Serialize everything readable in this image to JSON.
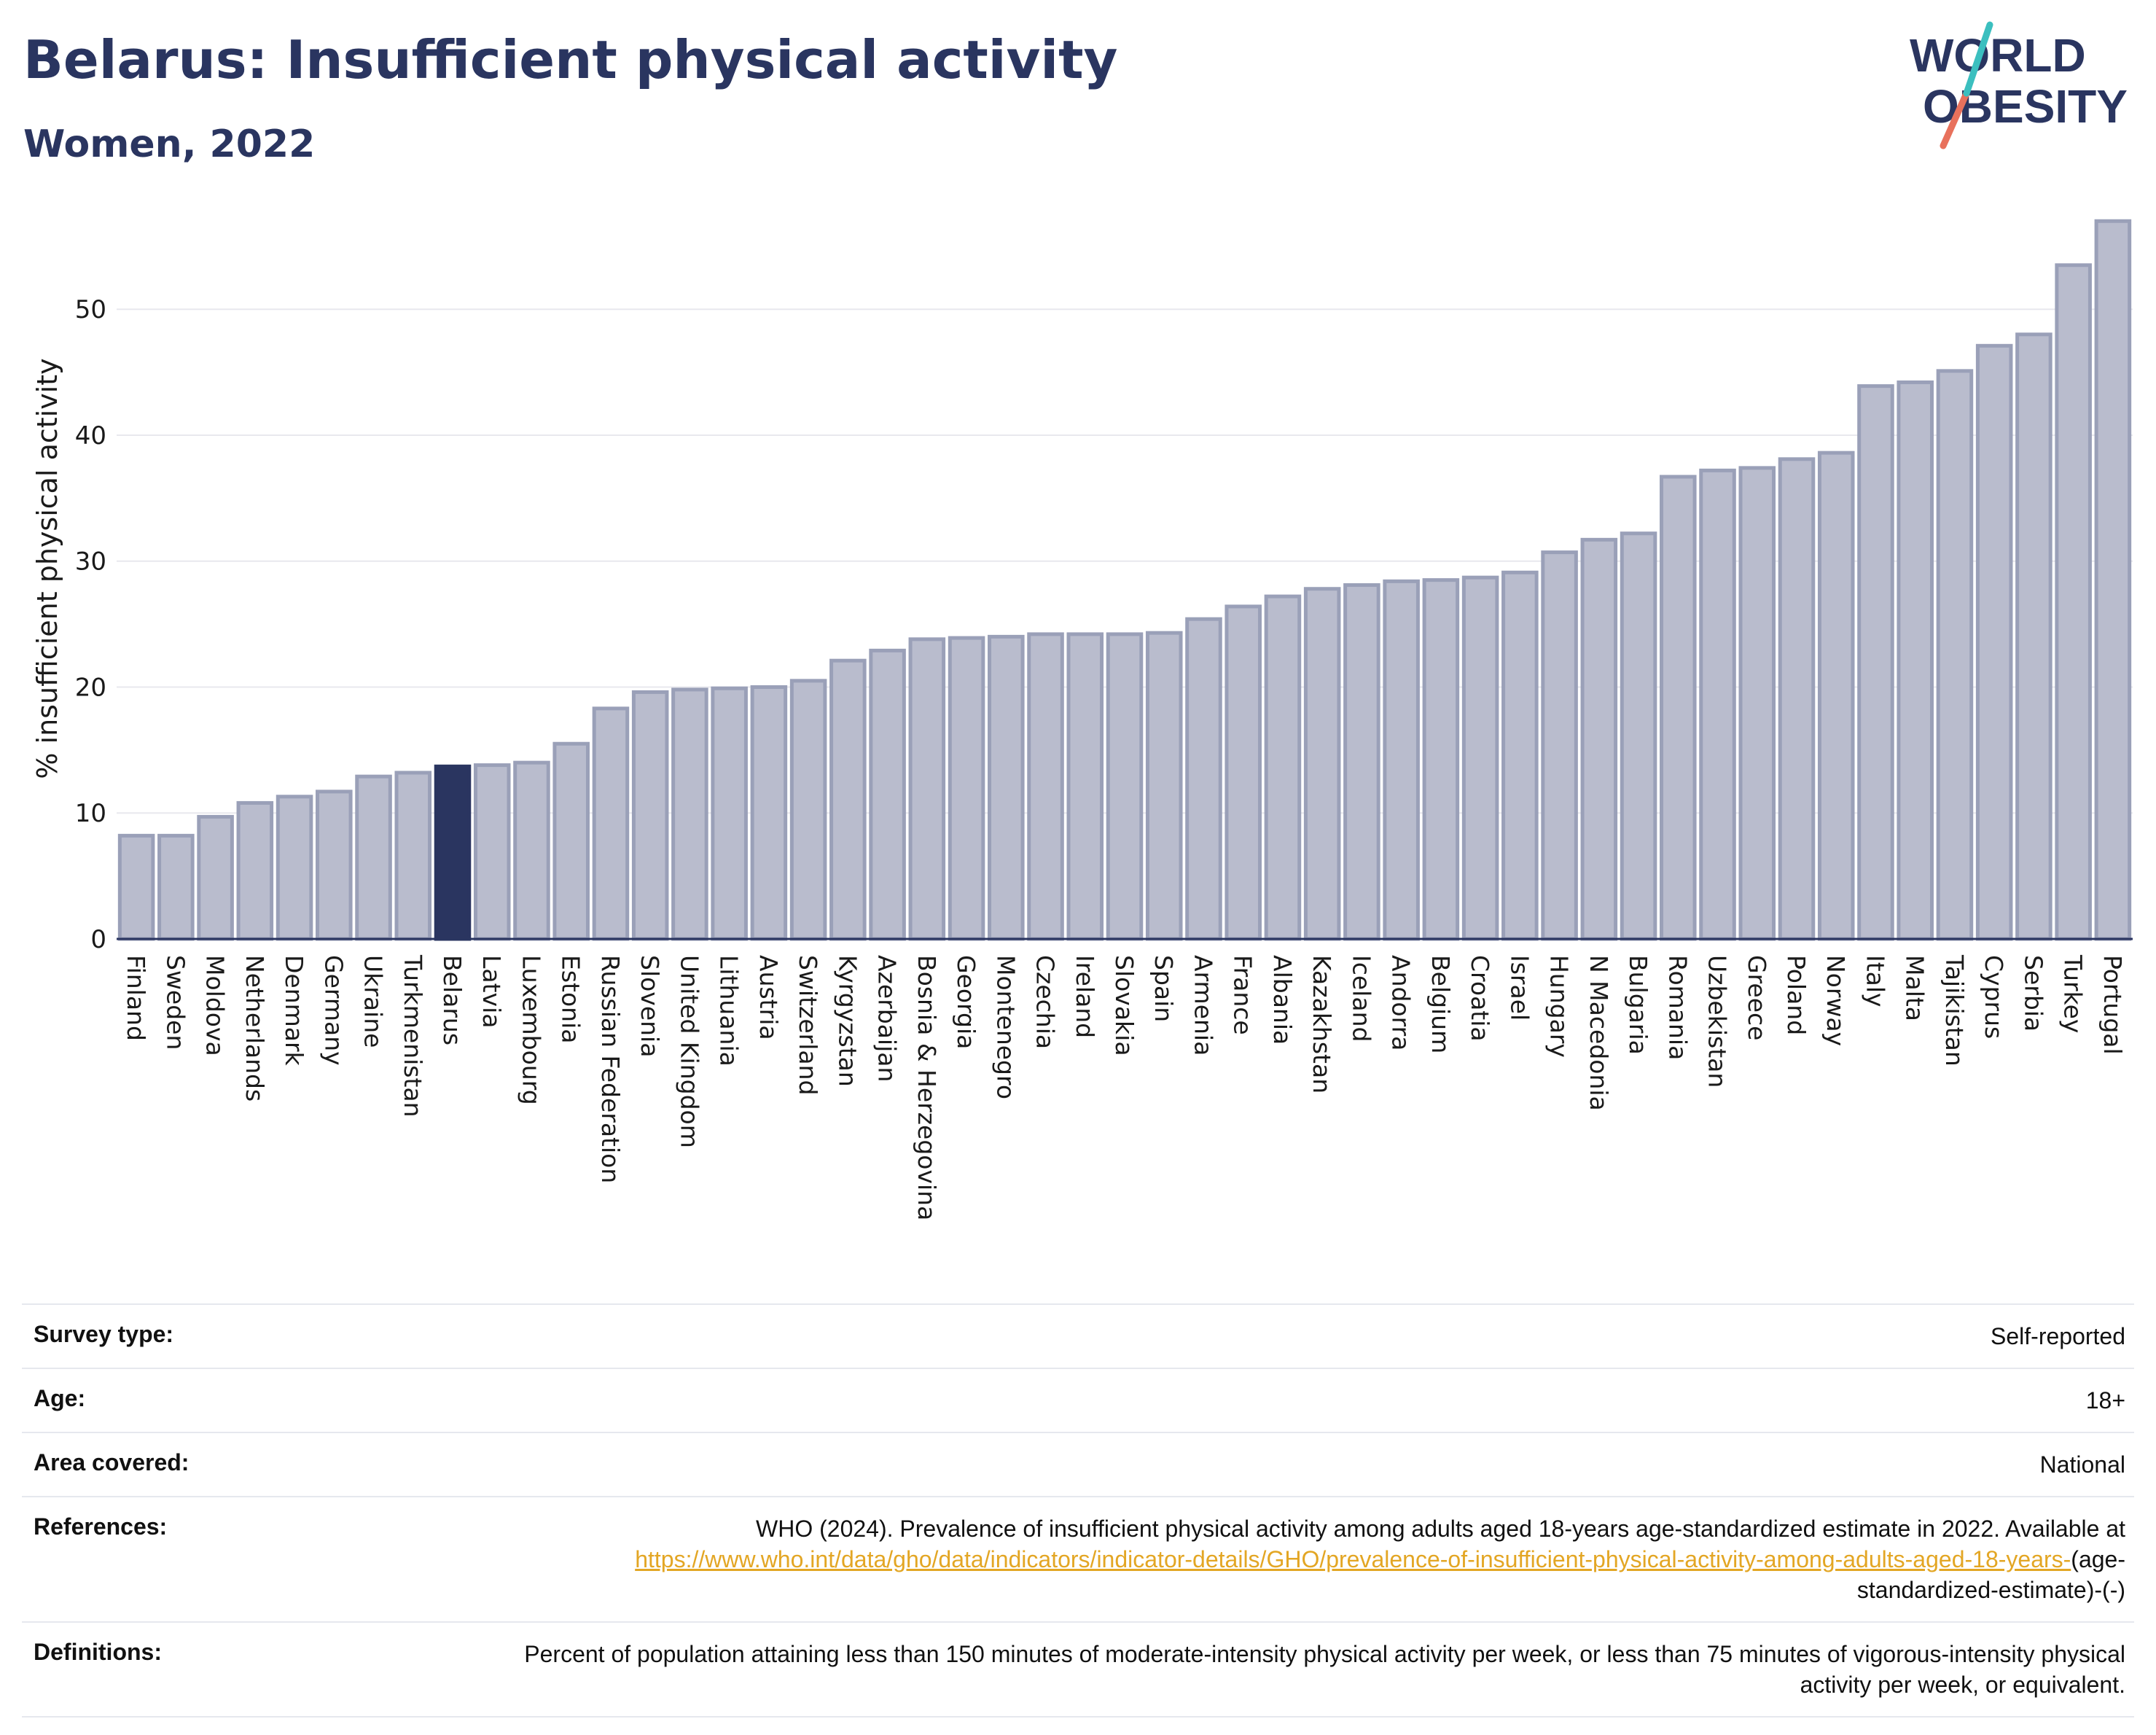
{
  "header": {
    "title": "Belarus: Insufficient physical activity",
    "subtitle": "Women, 2022"
  },
  "logo": {
    "line1": "WORLD",
    "line2": "OBESITY"
  },
  "colors": {
    "title": "#2a3560",
    "bar": "#b9bccd",
    "bar_edge": "#9aa0b8",
    "highlight": "#2a3560",
    "grid": "#e8e8ee",
    "link": "#e3a624"
  },
  "chart_data": {
    "type": "bar",
    "ylabel": "% insufficient physical activity",
    "xlabel": "",
    "ylim": [
      0,
      58
    ],
    "yticks": [
      0,
      10,
      20,
      30,
      40,
      50
    ],
    "grid": true,
    "highlight": "Belarus",
    "categories": [
      "Finland",
      "Sweden",
      "Moldova",
      "Netherlands",
      "Denmark",
      "Germany",
      "Ukraine",
      "Turkmenistan",
      "Belarus",
      "Latvia",
      "Luxembourg",
      "Estonia",
      "Russian Federation",
      "Slovenia",
      "United Kingdom",
      "Lithuania",
      "Austria",
      "Switzerland",
      "Kyrgyzstan",
      "Azerbaijan",
      "Bosnia & Herzegovina",
      "Georgia",
      "Montenegro",
      "Czechia",
      "Ireland",
      "Slovakia",
      "Spain",
      "Armenia",
      "France",
      "Albania",
      "Kazakhstan",
      "Iceland",
      "Andorra",
      "Belgium",
      "Croatia",
      "Israel",
      "Hungary",
      "N Macedonia",
      "Bulgaria",
      "Romania",
      "Uzbekistan",
      "Greece",
      "Poland",
      "Norway",
      "Italy",
      "Malta",
      "Tajikistan",
      "Cyprus",
      "Serbia",
      "Turkey",
      "Portugal"
    ],
    "values": [
      8.2,
      8.2,
      9.7,
      10.8,
      11.3,
      11.7,
      12.9,
      13.2,
      13.7,
      13.8,
      14.0,
      15.5,
      18.3,
      19.6,
      19.8,
      19.9,
      20.0,
      20.5,
      22.1,
      22.9,
      23.8,
      23.9,
      24.0,
      24.2,
      24.2,
      24.2,
      24.3,
      25.4,
      26.4,
      27.2,
      27.8,
      28.1,
      28.4,
      28.5,
      28.7,
      29.1,
      30.7,
      31.7,
      32.2,
      36.7,
      37.2,
      37.4,
      38.1,
      38.6,
      43.9,
      44.2,
      45.1,
      47.1,
      48.0,
      53.5,
      57.0
    ]
  },
  "info": {
    "survey_type_label": "Survey type:",
    "survey_type_value": "Self-reported",
    "age_label": "Age:",
    "age_value": "18+",
    "area_label": "Area covered:",
    "area_value": "National",
    "references_label": "References:",
    "references_text": "WHO (2024). Prevalence of insufficient physical activity among adults aged 18-years age-standardized estimate in 2022. Available at",
    "references_link": "https://www.who.int/data/gho/data/indicators/indicator-details/GHO/prevalence-of-insufficient-physical-activity-among-adults-aged-18-years-",
    "references_suffix": "(age-standardized-estimate)-(-)",
    "definitions_label": "Definitions:",
    "definitions_text": "Percent of population attaining less than 150 minutes of moderate-intensity physical activity per week, or less than 75 minutes of vigorous-intensity physical activity per week, or equivalent."
  }
}
